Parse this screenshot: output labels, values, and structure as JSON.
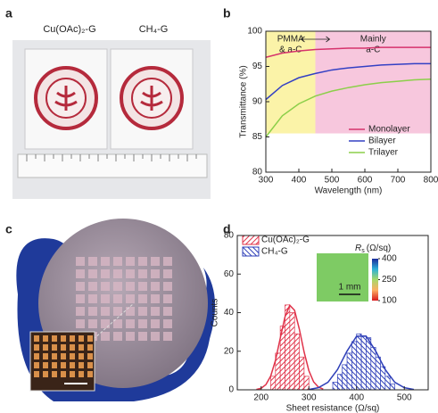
{
  "panel_labels": [
    "a",
    "b",
    "c",
    "d"
  ],
  "photo_a": {
    "labels": [
      "Cu(OAc)₂-G",
      "CH₄-G"
    ]
  },
  "chart_data": [
    {
      "type": "line",
      "x_label": "Wavelength (nm)",
      "y_label": "Transmittance (%)",
      "xlim": [
        300,
        800
      ],
      "ylim": [
        80,
        100
      ],
      "xticks": [
        300,
        400,
        500,
        600,
        700,
        800
      ],
      "yticks": [
        80,
        85,
        90,
        95,
        100
      ],
      "legend": "lower right",
      "regions": [
        {
          "lines": [
            "PMMA",
            "& a-C"
          ],
          "from": 300,
          "to": 450,
          "ylim": [
            85.5,
            100
          ],
          "color": "#fbf3a8"
        },
        {
          "lines": [
            "Mainly",
            "a-C"
          ],
          "from": 450,
          "to": 800,
          "ylim": [
            85.5,
            100
          ],
          "color": "#f7c7dd"
        }
      ],
      "x": [
        300,
        350,
        400,
        450,
        500,
        550,
        600,
        650,
        700,
        750,
        800
      ],
      "series": [
        {
          "name": "Monolayer",
          "color": "#d6336c",
          "values": [
            96.3,
            96.9,
            97.2,
            97.4,
            97.5,
            97.6,
            97.6,
            97.7,
            97.7,
            97.7,
            97.7
          ]
        },
        {
          "name": "Bilayer",
          "color": "#3340c4",
          "values": [
            90.3,
            92.3,
            93.4,
            94.0,
            94.5,
            94.8,
            95.0,
            95.2,
            95.3,
            95.4,
            95.4
          ]
        },
        {
          "name": "Trilayer",
          "color": "#8ccf4a",
          "values": [
            85.0,
            88.0,
            89.7,
            90.8,
            91.5,
            92.0,
            92.4,
            92.7,
            92.9,
            93.1,
            93.2
          ]
        }
      ]
    },
    {
      "type": "histogram",
      "x_label": "Sheet resistance (Ω/sq)",
      "y_label": "Counts",
      "xlim": [
        150,
        550
      ],
      "ylim": [
        0,
        80
      ],
      "xticks": [
        200,
        300,
        400,
        500
      ],
      "yticks": [
        0,
        20,
        40,
        60,
        80
      ],
      "legend": "upper left",
      "series": [
        {
          "name": "Cu(OAc)₂-G",
          "color": "#e0334a",
          "bins": [
            220,
            230,
            240,
            250,
            260,
            270,
            280,
            290,
            300
          ],
          "values": [
            7,
            19,
            33,
            44,
            40,
            29,
            17,
            7
          ]
        },
        {
          "name": "CH₄-G",
          "color": "#2e3fb8",
          "bins": [
            350,
            360,
            370,
            380,
            390,
            400,
            410,
            420,
            430,
            440,
            450,
            460,
            470,
            480
          ],
          "values": [
            4,
            8,
            13,
            19,
            25,
            29,
            28,
            27,
            22,
            17,
            12,
            7,
            3
          ]
        }
      ],
      "fits": [
        {
          "color": "#e0334a",
          "x": [
            190,
            200,
            210,
            220,
            230,
            240,
            250,
            260,
            270,
            280,
            290,
            300,
            310,
            320,
            330
          ],
          "values": [
            0.2,
            0.8,
            2.7,
            7.1,
            15.3,
            26.7,
            37.9,
            43.8,
            41.2,
            31.5,
            19.6,
            9.9,
            4.1,
            1.4,
            0.4
          ]
        },
        {
          "color": "#2e3fb8",
          "x": [
            300,
            320,
            340,
            360,
            380,
            400,
            420,
            440,
            460,
            480,
            500,
            520
          ],
          "values": [
            0.2,
            1.1,
            3.9,
            10.5,
            20.1,
            27.8,
            27.8,
            20.1,
            10.5,
            3.9,
            1.1,
            0.2
          ]
        }
      ],
      "inset": {
        "colorbar_symbol": "R",
        "colorbar_subscript": "s",
        "colorbar_unit": "(Ω/sq)",
        "colorbar_lim": [
          100,
          400
        ],
        "colorbar_ticks": [
          100,
          250,
          400
        ],
        "scale_bar": "1 mm"
      }
    }
  ]
}
